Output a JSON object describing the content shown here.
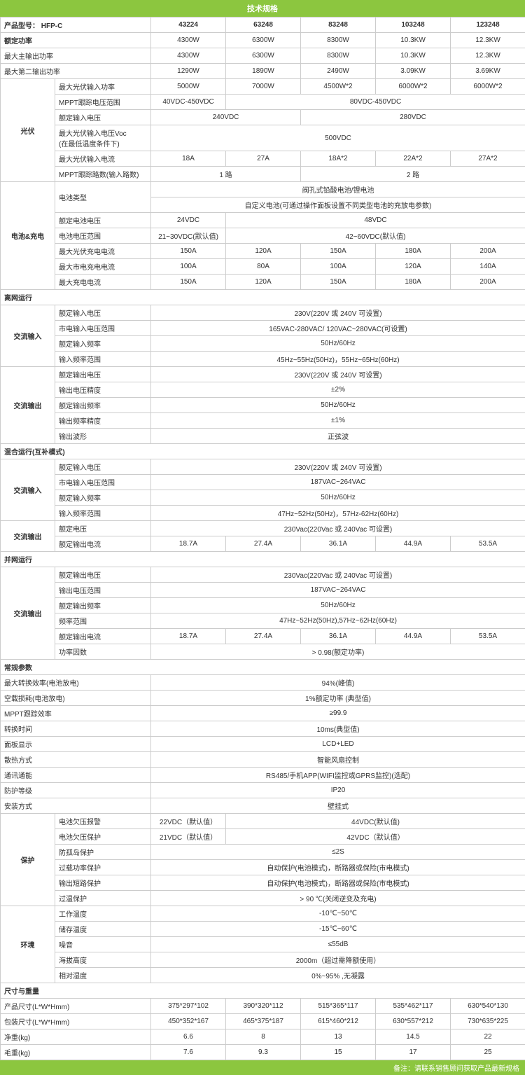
{
  "colors": {
    "accent": "#8cc63f",
    "border": "#cccccc",
    "text": "#333333"
  },
  "title": "技术规格",
  "footer": "备注：请联系销售顾问获取产品最新规格",
  "hdr": {
    "model_label": "产品型号： HFP-C",
    "m": [
      "43224",
      "63248",
      "83248",
      "103248",
      "123248"
    ]
  },
  "t": {
    "rated_power": {
      "l": "额定功率",
      "v": [
        "4300W",
        "6300W",
        "8300W",
        "10.3KW",
        "12.3KW"
      ]
    },
    "max_main_out": {
      "l": "最大主输出功率",
      "v": [
        "4300W",
        "6300W",
        "8300W",
        "10.3KW",
        "12.3KW"
      ]
    },
    "max_second_out": {
      "l": "最大第二输出功率",
      "v": [
        "1290W",
        "1890W",
        "2490W",
        "3.09KW",
        "3.69KW"
      ]
    },
    "pv": {
      "grp": "光伏",
      "max_pv_in": {
        "l": "最大光伏输入功率",
        "v": [
          "5000W",
          "7000W",
          "4500W*2",
          "6000W*2",
          "6000W*2"
        ]
      },
      "mppt_range": {
        "l": "MPPT跟踪电压范围",
        "a": "40VDC-450VDC",
        "b": "80VDC-450VDC"
      },
      "rated_in_v": {
        "l": "额定输入电压",
        "a": "240VDC",
        "b": "280VDC"
      },
      "max_voc": {
        "l": "最大光伏输入电压Voc\n(在最低温度条件下)",
        "v1": "500VDC"
      },
      "max_pv_i": {
        "l": "最大光伏输入电流",
        "v": [
          "18A",
          "27A",
          "18A*2",
          "22A*2",
          "27A*2"
        ]
      },
      "mppt_cnt": {
        "l": "MPPT跟踪路数(输入路数)",
        "a": "1 路",
        "b": "2 路"
      }
    },
    "bat": {
      "grp": "电池&充电",
      "type": {
        "l": "电池类型",
        "r1": "阀孔式铅酸电池/锂电池",
        "r2": "自定义电池(可通过操作面板设置不同类型电池的充放电参数)"
      },
      "rated_v": {
        "l": "额定电池电压",
        "a": "24VDC",
        "b": "48VDC"
      },
      "range": {
        "l": "电池电压范围",
        "a": "21~30VDC(默认值)",
        "b": "42~60VDC(默认值)"
      },
      "max_pv_chg": {
        "l": "最大光伏充电电流",
        "v": [
          "150A",
          "120A",
          "150A",
          "180A",
          "200A"
        ]
      },
      "max_ac_chg": {
        "l": "最大市电充电电流",
        "v": [
          "100A",
          "80A",
          "100A",
          "120A",
          "140A"
        ]
      },
      "max_chg": {
        "l": "最大充电电流",
        "v": [
          "150A",
          "120A",
          "150A",
          "180A",
          "200A"
        ]
      }
    },
    "off": {
      "hdr": "离网运行",
      "ac_in": {
        "grp": "交流输入",
        "rated_v": {
          "l": "额定输入电压",
          "v1": "230V(220V 或 240V 可设置)"
        },
        "range": {
          "l": "市电输入电压范围",
          "v1": "165VAC-280VAC/ 120VAC~280VAC(可设置)"
        },
        "rated_f": {
          "l": "额定输入频率",
          "v1": "50Hz/60Hz"
        },
        "f_range": {
          "l": "输入频率范围",
          "v1": "45Hz~55Hz(50Hz)，55Hz~65Hz(60Hz)"
        }
      },
      "ac_out": {
        "grp": "交流输出",
        "rated_v": {
          "l": "额定输出电压",
          "v1": "230V(220V 或 240V 可设置)"
        },
        "v_acc": {
          "l": "输出电压精度",
          "v1": "±2%"
        },
        "rated_f": {
          "l": "额定输出频率",
          "v1": "50Hz/60Hz"
        },
        "f_acc": {
          "l": "输出频率精度",
          "v1": "±1%"
        },
        "wave": {
          "l": "输出波形",
          "v1": "正弦波"
        }
      }
    },
    "hyb": {
      "hdr": "混合运行(互补模式)",
      "ac_in": {
        "grp": "交流输入",
        "rated_v": {
          "l": "额定输入电压",
          "v1": "230V(220V 或 240V 可设置)"
        },
        "range": {
          "l": "市电输入电压范围",
          "v1": "187VAC~264VAC"
        },
        "rated_f": {
          "l": "额定输入频率",
          "v1": "50Hz/60Hz"
        },
        "f_range": {
          "l": "输入频率范围",
          "v1": "47Hz~52Hz(50Hz)，57Hz-62Hz(60Hz)"
        }
      },
      "ac_out": {
        "grp": "交流输出",
        "rated_v": {
          "l": "额定电压",
          "v1": "230Vac(220Vac 或 240Vac 可设置)"
        },
        "rated_i": {
          "l": "额定输出电流",
          "v": [
            "18.7A",
            "27.4A",
            "36.1A",
            "44.9A",
            "53.5A"
          ]
        }
      }
    },
    "on": {
      "hdr": "并网运行",
      "ac_out": {
        "grp": "交流输出",
        "rated_v": {
          "l": "额定输出电压",
          "v1": "230Vac(220Vac 或 240Vac 可设置)"
        },
        "v_range": {
          "l": "输出电压范围",
          "v1": "187VAC~264VAC"
        },
        "rated_f": {
          "l": "额定输出频率",
          "v1": "50Hz/60Hz"
        },
        "f_range": {
          "l": "频率范围",
          "v1": "47Hz~52Hz(50Hz),57Hz~62Hz(60Hz)"
        },
        "rated_i": {
          "l": "额定输出电流",
          "v": [
            "18.7A",
            "27.4A",
            "36.1A",
            "44.9A",
            "53.5A"
          ]
        },
        "pf": {
          "l": "功率因数",
          "v1": "> 0.98(额定功率)"
        }
      }
    },
    "gen": {
      "hdr": "常规参数",
      "eff": {
        "l": "最大转换效率(电池放电)",
        "v1": "94%(峰值)"
      },
      "noload": {
        "l": "空载损耗(电池放电)",
        "v1": "1%额定功率 (典型值)"
      },
      "mppt_eff": {
        "l": "MPPT跟踪效率",
        "v1": "≥99.9"
      },
      "sw_time": {
        "l": "转换时间",
        "v1": "10ms(典型值)"
      },
      "disp": {
        "l": "面板显示",
        "v1": "LCD+LED"
      },
      "cool": {
        "l": "散热方式",
        "v1": "智能风扇控制"
      },
      "comm": {
        "l": "通讯通能",
        "v1": "RS485/手机APP(WIFI监控或GPRS监控)(选配)"
      },
      "ip": {
        "l": "防护等级",
        "v1": "IP20"
      },
      "mount": {
        "l": "安装方式",
        "v1": "壁挂式"
      },
      "prot": {
        "grp": "保护",
        "uv_alarm": {
          "l": "电池欠压报警",
          "a": "22VDC（默认值）",
          "b": "44VDC(默认值)"
        },
        "uv_prot": {
          "l": "电池欠压保护",
          "a": "21VDC（默认值）",
          "b": "42VDC（默认值）"
        },
        "island": {
          "l": "防孤岛保护",
          "v1": "≤2S"
        },
        "ol": {
          "l": "过载功率保护",
          "v1": "自动保护(电池模式)，断路器或保险(市电模式)"
        },
        "sc": {
          "l": "输出短路保护",
          "v1": "自动保护(电池模式)，断路器或保险(市电模式)"
        },
        "ot": {
          "l": "过温保护",
          "v1": "> 90 ℃(关闭逆变及充电)"
        }
      },
      "env": {
        "grp": "环境",
        "op_t": {
          "l": "工作温度",
          "v1": "-10℃~50℃"
        },
        "st_t": {
          "l": "储存温度",
          "v1": "-15℃~60℃"
        },
        "noise": {
          "l": "噪音",
          "v1": "≤55dB"
        },
        "alt": {
          "l": "海拔高度",
          "v1": "2000m（超过需降额使用）"
        },
        "rh": {
          "l": "相对湿度",
          "v1": "0%~95% ,无凝露"
        }
      }
    },
    "dim": {
      "hdr": "尺寸与重量",
      "prod": {
        "l": "产品尺寸(L*W*Hmm)",
        "v": [
          "375*297*102",
          "390*320*112",
          "515*365*117",
          "535*462*117",
          "630*540*130"
        ]
      },
      "pack": {
        "l": "包装尺寸(L*W*Hmm)",
        "v": [
          "450*352*167",
          "465*375*187",
          "615*460*212",
          "630*557*212",
          "730*635*225"
        ]
      },
      "nw": {
        "l": "净重(kg)",
        "v": [
          "6.6",
          "8",
          "13",
          "14.5",
          "22"
        ]
      },
      "gw": {
        "l": "毛重(kg)",
        "v": [
          "7.6",
          "9.3",
          "15",
          "17",
          "25"
        ]
      }
    }
  }
}
